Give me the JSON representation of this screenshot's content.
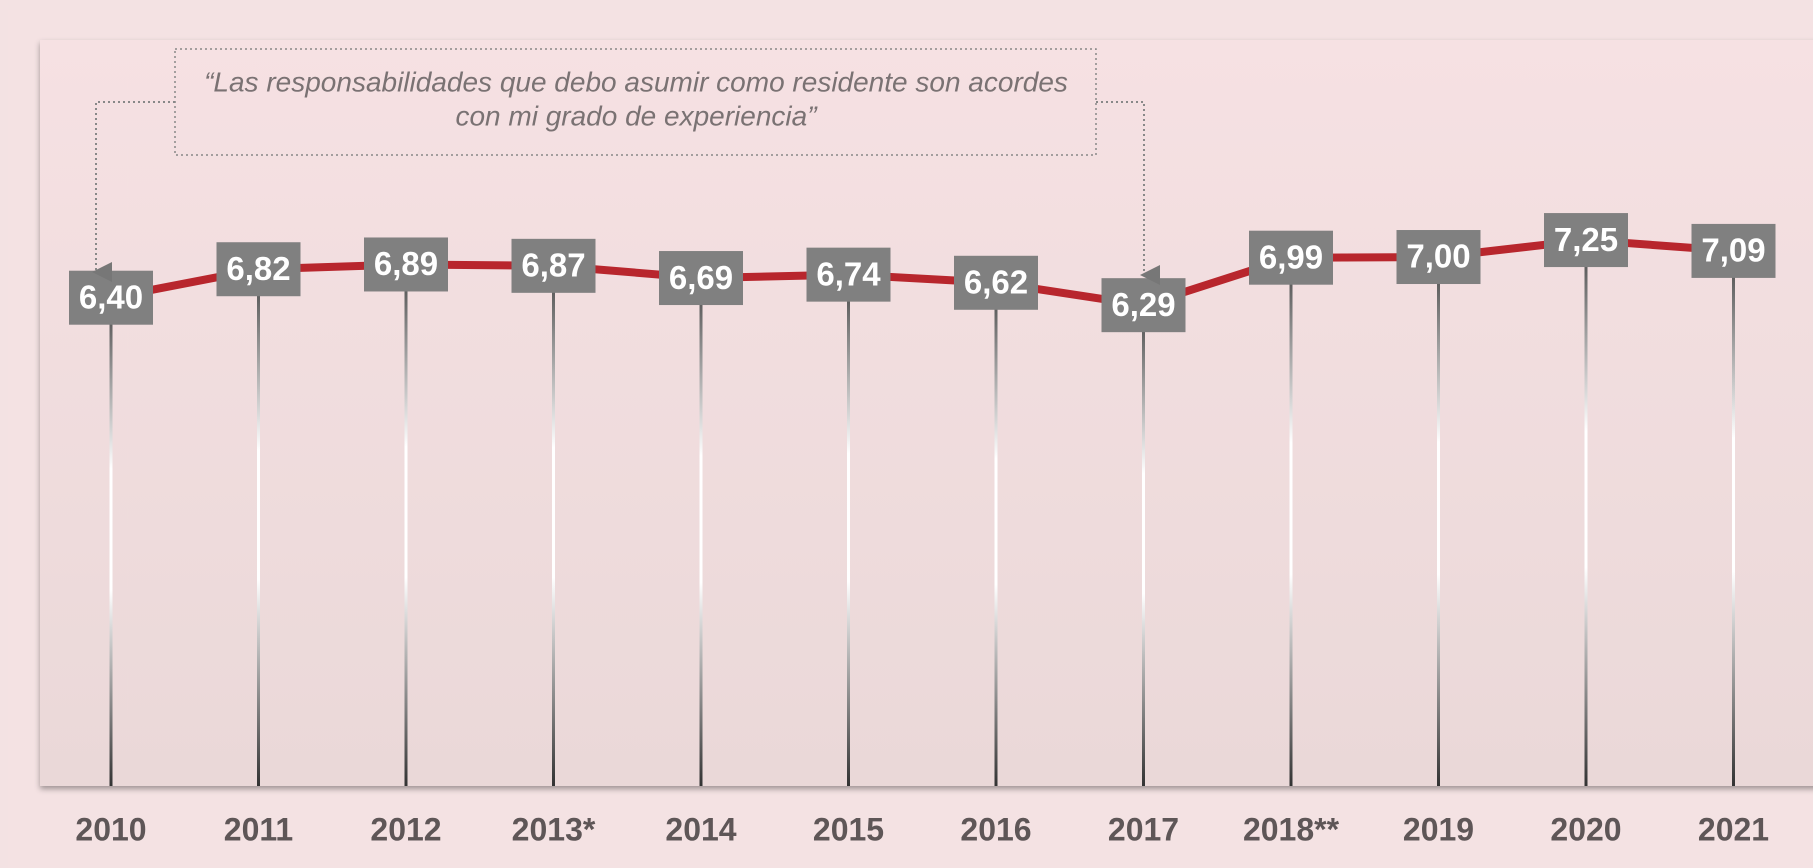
{
  "chart_data": {
    "type": "line",
    "annotation": [
      "“Las responsabilidades que debo asumir como residente son acordes",
      "con mi grado de experiencia”"
    ],
    "categories": [
      "2010",
      "2011",
      "2012",
      "2013*",
      "2014",
      "2015",
      "2016",
      "2017",
      "2018**",
      "2019",
      "2020",
      "2021"
    ],
    "series": [
      {
        "color": "#b8262d",
        "values": [
          6.4,
          6.82,
          6.89,
          6.87,
          6.69,
          6.74,
          6.62,
          6.29,
          6.99,
          7.0,
          7.25,
          7.09
        ],
        "value_labels": [
          "6,40",
          "6,82",
          "6,89",
          "6,87",
          "6,69",
          "6,74",
          "6,62",
          "6,29",
          "6,99",
          "7,00",
          "7,25",
          "7,09"
        ]
      }
    ],
    "ylim": [
      -0.8,
      10.2
    ]
  }
}
